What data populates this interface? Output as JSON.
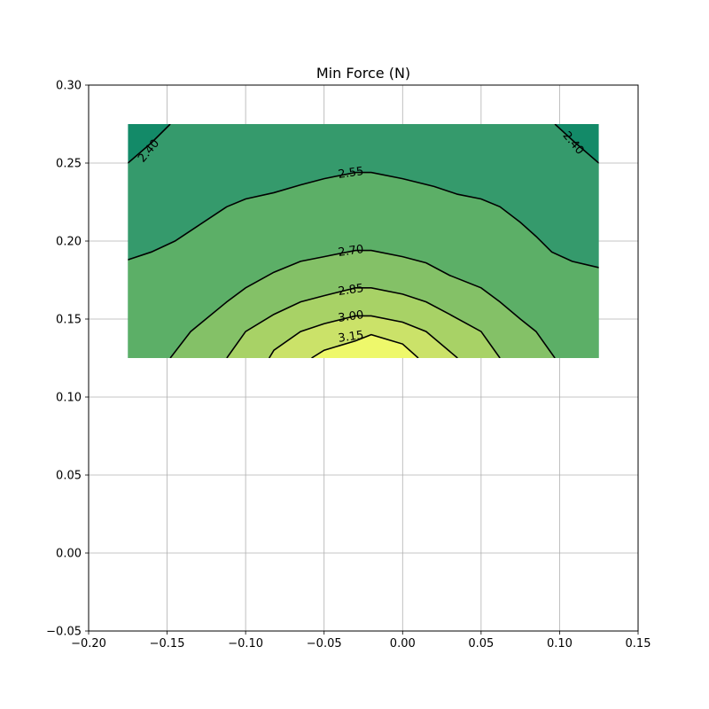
{
  "chart_data": {
    "type": "contour",
    "title": "Min Force (N)",
    "xlabel": "",
    "ylabel": "",
    "xlim": [
      -0.2,
      0.15
    ],
    "ylim": [
      -0.05,
      0.3
    ],
    "grid": true,
    "x_ticks": [
      "−0.20",
      "−0.15",
      "−0.10",
      "−0.05",
      "0.00",
      "0.05",
      "0.10",
      "0.15"
    ],
    "y_ticks": [
      "−0.05",
      "0.00",
      "0.05",
      "0.10",
      "0.15",
      "0.20",
      "0.25",
      "0.30"
    ],
    "x_tick_values": [
      -0.2,
      -0.15,
      -0.1,
      -0.05,
      0.0,
      0.05,
      0.1,
      0.15
    ],
    "y_tick_values": [
      -0.05,
      0.0,
      0.05,
      0.1,
      0.15,
      0.2,
      0.25,
      0.3
    ],
    "data_extent": {
      "x": [
        -0.175,
        0.125
      ],
      "y": [
        0.125,
        0.275
      ]
    },
    "levels": [
      2.4,
      2.55,
      2.7,
      2.85,
      3.0,
      3.15
    ],
    "contour_labels": [
      "2.40",
      "2.40",
      "2.55",
      "2.70",
      "2.85",
      "3.00",
      "3.15"
    ],
    "fill_colors": {
      "below_2_40": "#138a68",
      "2_40_to_2_55": "#359a6c",
      "2_55_to_2_70": "#5caf67",
      "2_70_to_2_85": "#84c167",
      "2_85_to_3_00": "#a8d266",
      "3_00_to_3_15": "#cbe269",
      "above_3_15": "#eef86b"
    },
    "contours": [
      {
        "level": 2.4,
        "label": "2.40",
        "segments": [
          [
            [
              -0.175,
              0.25
            ],
            [
              -0.16,
              0.263
            ],
            [
              -0.148,
              0.275
            ]
          ],
          [
            [
              0.097,
              0.275
            ],
            [
              0.11,
              0.263
            ],
            [
              0.125,
              0.25
            ]
          ]
        ]
      },
      {
        "level": 2.55,
        "label": "2.55",
        "segments": [
          [
            [
              -0.175,
              0.188
            ],
            [
              -0.16,
              0.193
            ],
            [
              -0.145,
              0.2
            ],
            [
              -0.13,
              0.21
            ],
            [
              -0.112,
              0.222
            ],
            [
              -0.1,
              0.227
            ],
            [
              -0.082,
              0.231
            ],
            [
              -0.065,
              0.236
            ],
            [
              -0.05,
              0.24
            ],
            [
              -0.03,
              0.244
            ],
            [
              -0.02,
              0.244
            ],
            [
              0.0,
              0.24
            ],
            [
              0.02,
              0.235
            ],
            [
              0.035,
              0.23
            ],
            [
              0.05,
              0.227
            ],
            [
              0.062,
              0.222
            ],
            [
              0.075,
              0.212
            ],
            [
              0.085,
              0.203
            ],
            [
              0.095,
              0.193
            ],
            [
              0.108,
              0.187
            ],
            [
              0.125,
              0.183
            ]
          ]
        ]
      },
      {
        "level": 2.7,
        "label": "2.70",
        "segments": [
          [
            [
              -0.148,
              0.125
            ],
            [
              -0.135,
              0.142
            ],
            [
              -0.112,
              0.161
            ],
            [
              -0.1,
              0.17
            ],
            [
              -0.082,
              0.18
            ],
            [
              -0.065,
              0.187
            ],
            [
              -0.05,
              0.19
            ],
            [
              -0.03,
              0.194
            ],
            [
              -0.02,
              0.194
            ],
            [
              0.0,
              0.19
            ],
            [
              0.015,
              0.186
            ],
            [
              0.03,
              0.178
            ],
            [
              0.05,
              0.17
            ],
            [
              0.062,
              0.161
            ],
            [
              0.075,
              0.15
            ],
            [
              0.085,
              0.142
            ],
            [
              0.097,
              0.125
            ]
          ]
        ]
      },
      {
        "level": 2.85,
        "label": "2.85",
        "segments": [
          [
            [
              -0.112,
              0.125
            ],
            [
              -0.1,
              0.142
            ],
            [
              -0.082,
              0.153
            ],
            [
              -0.065,
              0.161
            ],
            [
              -0.05,
              0.165
            ],
            [
              -0.03,
              0.17
            ],
            [
              -0.02,
              0.17
            ],
            [
              0.0,
              0.166
            ],
            [
              0.015,
              0.161
            ],
            [
              0.03,
              0.153
            ],
            [
              0.05,
              0.142
            ],
            [
              0.062,
              0.125
            ]
          ]
        ]
      },
      {
        "level": 3.0,
        "label": "3.00",
        "segments": [
          [
            [
              -0.085,
              0.125
            ],
            [
              -0.082,
              0.13
            ],
            [
              -0.065,
              0.142
            ],
            [
              -0.05,
              0.147
            ],
            [
              -0.03,
              0.152
            ],
            [
              -0.02,
              0.152
            ],
            [
              0.0,
              0.148
            ],
            [
              0.015,
              0.142
            ],
            [
              0.035,
              0.125
            ]
          ]
        ]
      },
      {
        "level": 3.15,
        "label": "3.15",
        "segments": [
          [
            [
              -0.058,
              0.125
            ],
            [
              -0.05,
              0.13
            ],
            [
              -0.03,
              0.136
            ],
            [
              -0.02,
              0.14
            ],
            [
              0.0,
              0.134
            ],
            [
              0.01,
              0.125
            ]
          ]
        ]
      }
    ],
    "label_anchors": [
      {
        "text": "2.40",
        "x": -0.162,
        "y": 0.258,
        "rotate": -50
      },
      {
        "text": "2.40",
        "x": 0.109,
        "y": 0.263,
        "rotate": 50
      },
      {
        "text": "2.55",
        "x": -0.033,
        "y": 0.244,
        "rotate": -8
      },
      {
        "text": "2.70",
        "x": -0.033,
        "y": 0.194,
        "rotate": -8
      },
      {
        "text": "2.85",
        "x": -0.033,
        "y": 0.169,
        "rotate": -8
      },
      {
        "text": "3.00",
        "x": -0.033,
        "y": 0.152,
        "rotate": -8
      },
      {
        "text": "3.15",
        "x": -0.033,
        "y": 0.139,
        "rotate": -8
      }
    ]
  }
}
